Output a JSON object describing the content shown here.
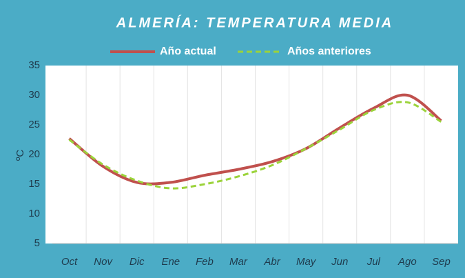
{
  "chart_data": {
    "type": "line",
    "title": "ALMERÍA: TEMPERATURA MEDIA",
    "y_label": "ºC",
    "categories": [
      "Oct",
      "Nov",
      "Dic",
      "Ene",
      "Feb",
      "Mar",
      "Abr",
      "May",
      "Jun",
      "Jul",
      "Ago",
      "Sep"
    ],
    "series": [
      {
        "name": "Año actual",
        "color": "#c0504d",
        "values": [
          22.7,
          18,
          15.3,
          15.3,
          16.5,
          17.5,
          18.8,
          21,
          24.5,
          27.8,
          30,
          25.7
        ]
      },
      {
        "name": "Años anteriores",
        "color": "#9bd33a",
        "values": [
          22.5,
          18.3,
          15.6,
          14.3,
          15,
          16.3,
          18.2,
          21,
          24.2,
          27.5,
          28.8,
          25.5
        ]
      }
    ],
    "ylim": [
      5,
      35
    ],
    "yticks": [
      5,
      10,
      15,
      20,
      25,
      30,
      35
    ],
    "smooth": true
  }
}
